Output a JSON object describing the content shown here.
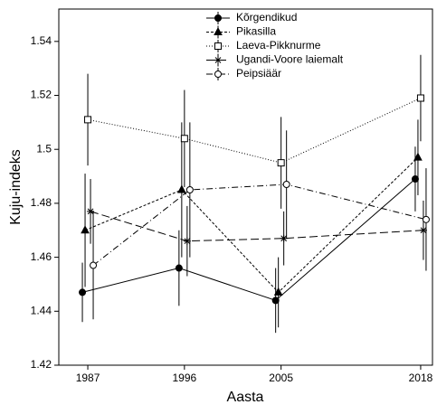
{
  "chart_data": {
    "type": "line",
    "x_label": "Aasta",
    "y_label": "Kuju-indeks",
    "x": [
      1987,
      1996,
      2005,
      2018
    ],
    "xlim": [
      1984.3,
      2019.1
    ],
    "xticks": [
      1987,
      1996,
      2005,
      2018
    ],
    "ylim": [
      1.42,
      1.552
    ],
    "yticks": [
      1.42,
      1.44,
      1.46,
      1.48,
      1.5,
      1.52,
      1.54
    ],
    "legend": "upper right",
    "series": [
      {
        "name": "Kõrgendikud",
        "color": "#000000",
        "dash": "solid",
        "marker": "filled-circle",
        "values": [
          1.447,
          1.456,
          1.444,
          1.489
        ],
        "errors": [
          0.011,
          0.014,
          0.012,
          0.012
        ]
      },
      {
        "name": "Pikasilla",
        "color": "#000000",
        "dash": "short-dash",
        "marker": "filled-triangle",
        "values": [
          1.47,
          1.485,
          1.447,
          1.497
        ],
        "errors": [
          0.021,
          0.025,
          0.013,
          0.014
        ]
      },
      {
        "name": "Laeva-Pikknurme",
        "color": "#000000",
        "dash": "dotted",
        "marker": "open-square",
        "values": [
          1.511,
          1.504,
          1.495,
          1.519
        ],
        "errors": [
          0.017,
          0.018,
          0.017,
          0.016
        ]
      },
      {
        "name": "Ugandi-Voore laiemalt",
        "color": "#000000",
        "dash": "long-dash",
        "marker": "star",
        "values": [
          1.477,
          1.466,
          1.467,
          1.47
        ],
        "errors": [
          0.012,
          0.013,
          0.01,
          0.011
        ]
      },
      {
        "name": "Peipsiäär",
        "color": "#000000",
        "dash": "dash-dot",
        "marker": "open-circle",
        "values": [
          1.457,
          1.485,
          1.487,
          1.474
        ],
        "errors": [
          0.02,
          0.025,
          0.02,
          0.019
        ]
      }
    ]
  }
}
